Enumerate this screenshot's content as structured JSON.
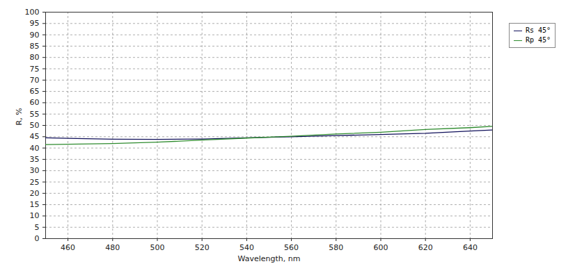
{
  "chart_data": {
    "type": "line",
    "x_label": "Wavelength, nm",
    "y_label": "R, %",
    "x": [
      450,
      460,
      480,
      500,
      520,
      540,
      560,
      580,
      600,
      620,
      640,
      650
    ],
    "series": [
      {
        "name": "Rs 45°",
        "color": "#10105a",
        "line_style": "solid",
        "values": [
          44.5,
          44.3,
          43.9,
          43.8,
          44.0,
          44.5,
          45.0,
          45.5,
          46.0,
          46.5,
          47.5,
          48.0
        ]
      },
      {
        "name": "Rp 45°",
        "color": "#2e8b2e",
        "line_style": "solid",
        "values": [
          41.5,
          41.7,
          42.0,
          42.6,
          43.5,
          44.4,
          45.2,
          46.2,
          47.0,
          48.2,
          49.0,
          49.6
        ]
      }
    ],
    "xlim": [
      450,
      650
    ],
    "xticks": [
      460,
      480,
      500,
      520,
      540,
      560,
      580,
      600,
      620,
      640
    ],
    "ylim": [
      0,
      100
    ],
    "yticks": [
      0,
      5,
      10,
      15,
      20,
      25,
      30,
      35,
      40,
      45,
      50,
      55,
      60,
      65,
      70,
      75,
      80,
      85,
      90,
      95,
      100
    ],
    "grid": true,
    "legend": "right"
  }
}
